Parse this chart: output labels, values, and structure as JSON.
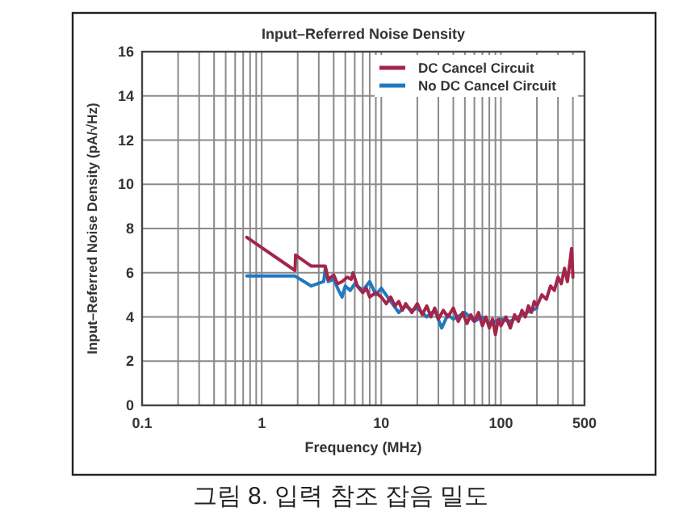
{
  "chart_data": {
    "type": "line",
    "title": "Input–Referred Noise Density",
    "xlabel": "Frequency (MHz)",
    "ylabel": "Input–Referred Noise Density (pA/√Hz)",
    "annotations": [
      "그림 8. 입력 참조 잡음 밀도"
    ],
    "log": "x",
    "xlim": [
      0.1,
      500
    ],
    "xticks": [
      0.1,
      {
        "value": 0.2,
        "label": null
      },
      {
        "value": 0.3,
        "label": null
      },
      {
        "value": 0.4,
        "label": null
      },
      {
        "value": 0.5,
        "label": null
      },
      {
        "value": 0.6,
        "label": null
      },
      {
        "value": 0.7,
        "label": null
      },
      {
        "value": 0.8,
        "label": null
      },
      {
        "value": 0.9,
        "label": null
      },
      1,
      {
        "value": 2,
        "label": null
      },
      {
        "value": 3,
        "label": null
      },
      {
        "value": 4,
        "label": null
      },
      {
        "value": 5,
        "label": null
      },
      {
        "value": 6,
        "label": null
      },
      {
        "value": 7,
        "label": null
      },
      {
        "value": 8,
        "label": null
      },
      {
        "value": 9,
        "label": null
      },
      10,
      {
        "value": 20,
        "label": null
      },
      {
        "value": 30,
        "label": null
      },
      {
        "value": 40,
        "label": null
      },
      {
        "value": 50,
        "label": null
      },
      {
        "value": 60,
        "label": null
      },
      {
        "value": 70,
        "label": null
      },
      {
        "value": 80,
        "label": null
      },
      {
        "value": 90,
        "label": null
      },
      100,
      {
        "value": 200,
        "label": null
      },
      {
        "value": 300,
        "label": null
      },
      {
        "value": 400,
        "label": null
      },
      500
    ],
    "ylim": [
      0,
      16
    ],
    "yticks": [
      0,
      2,
      4,
      6,
      8,
      10,
      12,
      14,
      16
    ],
    "grid": true,
    "legend": "top right",
    "series": [
      {
        "name": "DC Cancel Circuit",
        "color": "#a4254a",
        "x": [
          0.75,
          1.9,
          1.92,
          2.6,
          3.4,
          3.6,
          4.0,
          4.3,
          4.7,
          5.2,
          5.6,
          5.8,
          6.3,
          7,
          7.5,
          8,
          9,
          10,
          11,
          12,
          13,
          14,
          15,
          16,
          18,
          20,
          22,
          24,
          26,
          28,
          30,
          33,
          36,
          40,
          44,
          48,
          52,
          56,
          60,
          65,
          70,
          75,
          80,
          85,
          90,
          95,
          100,
          110,
          120,
          130,
          140,
          150,
          160,
          170,
          180,
          190,
          200,
          220,
          240,
          260,
          280,
          300,
          320,
          340,
          360,
          380,
          390,
          400
        ],
        "values": [
          7.6,
          6.1,
          6.8,
          6.3,
          6.3,
          5.7,
          5.9,
          5.5,
          5.6,
          5.8,
          5.7,
          6.0,
          5.4,
          5.1,
          5.3,
          4.9,
          5.1,
          4.9,
          4.6,
          4.9,
          4.5,
          4.7,
          4.3,
          4.6,
          4.2,
          4.6,
          4.1,
          4.5,
          4.0,
          4.4,
          3.9,
          4.3,
          4.0,
          4.4,
          3.8,
          4.2,
          3.7,
          4.1,
          3.8,
          4.2,
          3.6,
          4.0,
          3.5,
          3.9,
          3.2,
          3.9,
          3.6,
          4.0,
          3.5,
          4.1,
          3.8,
          4.3,
          4.0,
          4.5,
          4.2,
          4.7,
          4.5,
          5.0,
          4.8,
          5.4,
          5.2,
          5.8,
          5.5,
          6.2,
          5.6,
          6.6,
          7.1,
          5.8
        ]
      },
      {
        "name": "No DC Cancel Circuit",
        "color": "#1f78c1",
        "x": [
          0.75,
          1.9,
          2.6,
          3.3,
          3.4,
          3.6,
          4.0,
          4.4,
          4.7,
          5.0,
          5.5,
          6,
          7,
          8,
          9,
          10,
          12,
          14,
          16,
          18,
          20,
          24,
          28,
          32,
          36,
          40,
          50,
          60,
          70,
          80,
          100,
          120,
          150,
          200
        ],
        "values": [
          5.85,
          5.85,
          5.4,
          5.6,
          6.2,
          5.6,
          5.7,
          5.2,
          4.9,
          5.4,
          5.2,
          5.5,
          5.2,
          5.6,
          5.0,
          5.3,
          4.7,
          4.2,
          4.5,
          4.3,
          4.4,
          4.0,
          4.3,
          3.5,
          4.1,
          3.9,
          4.2,
          3.8,
          4.0,
          3.7,
          3.9,
          3.8,
          4.1,
          4.4
        ]
      }
    ]
  }
}
